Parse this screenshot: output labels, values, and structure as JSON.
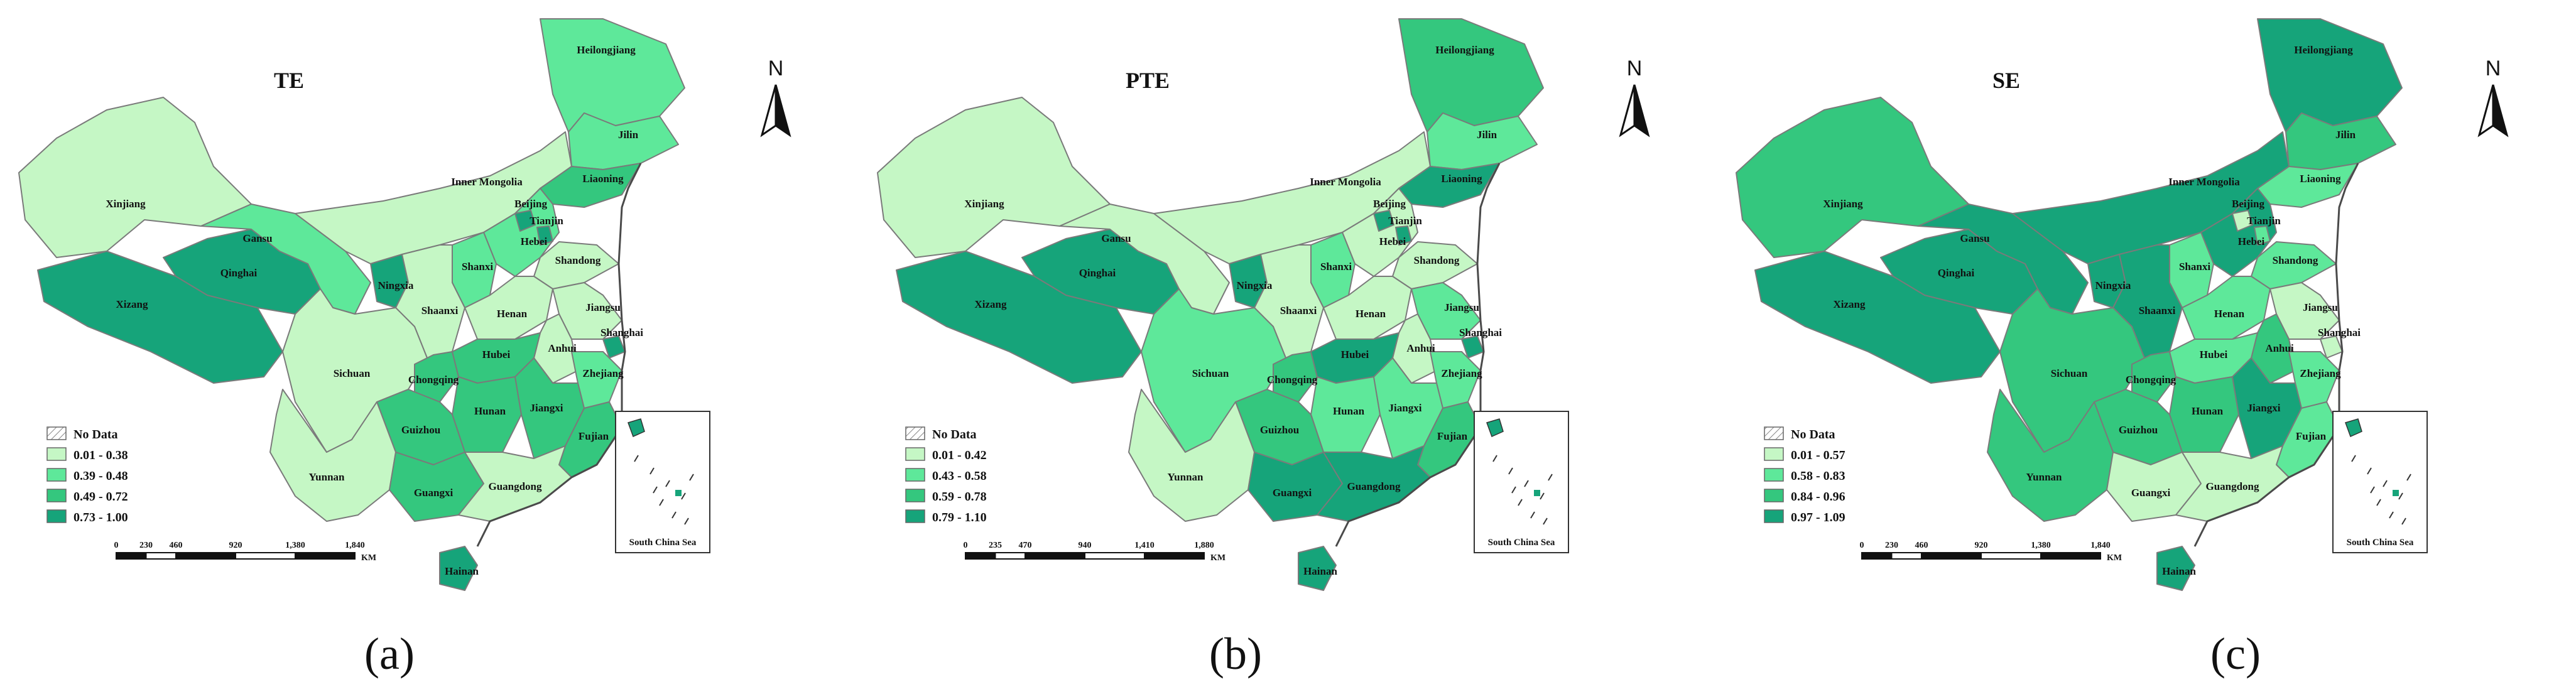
{
  "colors": {
    "c1": "#c5f7c5",
    "c2": "#5ee89a",
    "c3": "#34c77e",
    "c4": "#16a47a",
    "nodata": "#ffffff",
    "outline": "#4a4a4a"
  },
  "common": {
    "no_data": "No Data",
    "km": "KM",
    "inset_label": "South China Sea",
    "north": "N"
  },
  "province_names": {
    "Xinjiang": "Xinjiang",
    "Xizang": "Xizang",
    "Qinghai": "Qinghai",
    "Gansu": "Gansu",
    "InnerMongolia": "Inner Mongolia",
    "Heilongjiang": "Heilongjiang",
    "Jilin": "Jilin",
    "Liaoning": "Liaoning",
    "Beijing": "Beijing",
    "Tianjin": "Tianjin",
    "Hebei": "Hebei",
    "Shanxi": "Shanxi",
    "Shandong": "Shandong",
    "Ningxia": "Ningxia",
    "Shaanxi": "Shaanxi",
    "Henan": "Henan",
    "Jiangsu": "Jiangsu",
    "Anhui": "Anhui",
    "Shanghai": "Shanghai",
    "Sichuan": "Sichuan",
    "Chongqing": "Chongqing",
    "Hubei": "Hubei",
    "Zhejiang": "Zhejiang",
    "Hunan": "Hunan",
    "Jiangxi": "Jiangxi",
    "Guizhou": "Guizhou",
    "Fujian": "Fujian",
    "Yunnan": "Yunnan",
    "Guangxi": "Guangxi",
    "Guangdong": "Guangdong",
    "Hainan": "Hainan"
  },
  "panels": [
    {
      "title": "TE",
      "caption": "(a)",
      "legend": [
        "0.01 - 0.38",
        "0.39 - 0.48",
        "0.49 - 0.72",
        "0.73 - 1.00"
      ],
      "scale": [
        "0",
        "230",
        "460",
        "920",
        "1,380",
        "1,840"
      ],
      "classes": {
        "Xinjiang": 1,
        "Xizang": 4,
        "Qinghai": 4,
        "Gansu": 2,
        "InnerMongolia": 1,
        "Heilongjiang": 2,
        "Jilin": 2,
        "Liaoning": 3,
        "Beijing": 4,
        "Tianjin": 4,
        "Hebei": 2,
        "Shanxi": 2,
        "Shandong": 1,
        "Ningxia": 4,
        "Shaanxi": 1,
        "Henan": 1,
        "Jiangsu": 1,
        "Anhui": 1,
        "Shanghai": 4,
        "Sichuan": 1,
        "Chongqing": 3,
        "Hubei": 3,
        "Zhejiang": 2,
        "Hunan": 3,
        "Jiangxi": 3,
        "Guizhou": 3,
        "Fujian": 3,
        "Yunnan": 1,
        "Guangxi": 3,
        "Guangdong": 1,
        "Hainan": 4
      }
    },
    {
      "title": "PTE",
      "caption": "(b)",
      "legend": [
        "0.01 - 0.42",
        "0.43 - 0.58",
        "0.59 - 0.78",
        "0.79 - 1.10"
      ],
      "scale": [
        "0",
        "235",
        "470",
        "940",
        "1,410",
        "1,880"
      ],
      "classes": {
        "Xinjiang": 1,
        "Xizang": 4,
        "Qinghai": 4,
        "Gansu": 1,
        "InnerMongolia": 1,
        "Heilongjiang": 3,
        "Jilin": 2,
        "Liaoning": 4,
        "Beijing": 4,
        "Tianjin": 4,
        "Hebei": 1,
        "Shanxi": 2,
        "Shandong": 1,
        "Ningxia": 4,
        "Shaanxi": 1,
        "Henan": 1,
        "Jiangsu": 2,
        "Anhui": 1,
        "Shanghai": 4,
        "Sichuan": 2,
        "Chongqing": 3,
        "Hubei": 4,
        "Zhejiang": 2,
        "Hunan": 2,
        "Jiangxi": 2,
        "Guizhou": 3,
        "Fujian": 3,
        "Yunnan": 1,
        "Guangxi": 4,
        "Guangdong": 4,
        "Hainan": 4
      }
    },
    {
      "title": "SE",
      "caption": "(c)",
      "legend": [
        "0.01 - 0.57",
        "0.58 - 0.83",
        "0.84 - 0.96",
        "0.97 - 1.09"
      ],
      "scale": [
        "0",
        "230",
        "460",
        "920",
        "1,380",
        "1,840"
      ],
      "classes": {
        "Xinjiang": 3,
        "Xizang": 4,
        "Qinghai": 4,
        "Gansu": 4,
        "InnerMongolia": 4,
        "Heilongjiang": 4,
        "Jilin": 3,
        "Liaoning": 2,
        "Beijing": 1,
        "Tianjin": 2,
        "Hebei": 4,
        "Shanxi": 2,
        "Shandong": 2,
        "Ningxia": 4,
        "Shaanxi": 4,
        "Henan": 2,
        "Jiangsu": 1,
        "Anhui": 3,
        "Shanghai": 1,
        "Sichuan": 3,
        "Chongqing": 3,
        "Hubei": 2,
        "Zhejiang": 2,
        "Hunan": 3,
        "Jiangxi": 4,
        "Guizhou": 3,
        "Fujian": 2,
        "Yunnan": 3,
        "Guangxi": 1,
        "Guangdong": 1,
        "Hainan": 4
      }
    }
  ]
}
